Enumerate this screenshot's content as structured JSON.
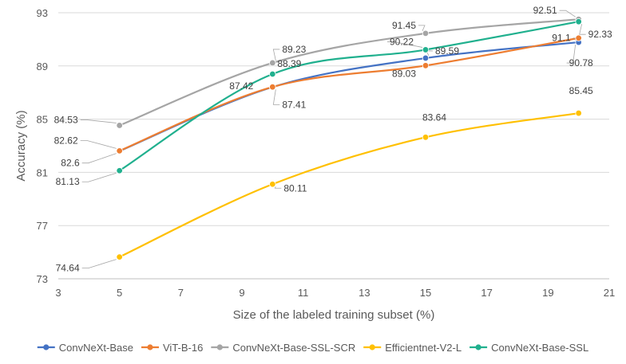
{
  "chart_data": {
    "type": "line",
    "title": "",
    "xlabel": "Size of the labeled training subset (%)",
    "ylabel": "Accuracy (%)",
    "xlim": [
      3,
      21
    ],
    "ylim": [
      73,
      93
    ],
    "xticks": [
      3,
      5,
      7,
      9,
      11,
      13,
      15,
      17,
      19,
      21
    ],
    "yticks": [
      73,
      77,
      81,
      85,
      89,
      93
    ],
    "grid": "horizontal",
    "legend_position": "bottom",
    "x": [
      5,
      10,
      15,
      20
    ],
    "series": [
      {
        "name": "ConvNeXt-Base",
        "color": "#4472C4",
        "values": [
          82.6,
          87.41,
          89.59,
          90.78
        ],
        "labels": [
          "82.6",
          "87.41",
          "89.59",
          "90.78"
        ]
      },
      {
        "name": "ViT-B-16",
        "color": "#ED7D31",
        "values": [
          82.62,
          87.42,
          89.03,
          91.1
        ],
        "labels": [
          "82.62",
          "87.42",
          "89.03",
          "91.1"
        ]
      },
      {
        "name": "ConvNeXt-Base-SSL-SCR",
        "color": "#A5A5A5",
        "values": [
          84.53,
          89.23,
          91.45,
          92.51
        ],
        "labels": [
          "84.53",
          "89.23",
          "91.45",
          "92.51"
        ]
      },
      {
        "name": "Efficientnet-V2-L",
        "color": "#FFC000",
        "values": [
          74.64,
          80.11,
          83.64,
          85.45
        ],
        "labels": [
          "74.64",
          "80.11",
          "83.64",
          "85.45"
        ]
      },
      {
        "name": "ConvNeXt-Base-SSL",
        "color": "#20B08E",
        "values": [
          81.13,
          88.39,
          90.22,
          92.33
        ],
        "labels": [
          "81.13",
          "88.39",
          "90.22",
          "92.33"
        ]
      }
    ]
  }
}
